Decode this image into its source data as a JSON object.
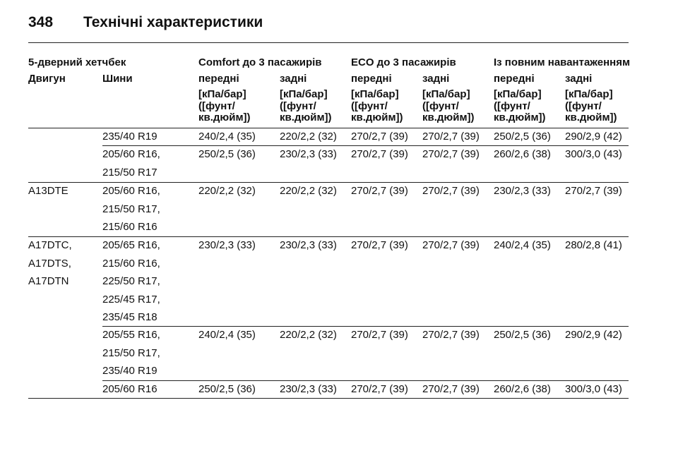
{
  "header": {
    "page_number": "348",
    "title": "Технічні характеристики"
  },
  "table": {
    "group_headers": [
      "5-дверний хетчбек",
      "Comfort до 3 пасажирів",
      "ECO до 3 пасажирів",
      "Із повним навантаженням"
    ],
    "column_headers": [
      "Двигун",
      "Шини",
      "передні",
      "задні",
      "передні",
      "задні",
      "передні",
      "задні"
    ],
    "unit_lines": [
      "[кПа/бар]",
      "([фунт/",
      "кв.дюйм])"
    ],
    "rows": [
      {
        "engine": [],
        "tyres": [
          "235/40 R19"
        ],
        "values": [
          "240/2,4 (35)",
          "220/2,2 (32)",
          "270/2,7 (39)",
          "270/2,7 (39)",
          "250/2,5 (36)",
          "290/2,9 (42)"
        ]
      },
      {
        "engine": [],
        "tyres": [
          "205/60 R16,",
          "215/50 R17"
        ],
        "values": [
          "250/2,5 (36)",
          "230/2,3 (33)",
          "270/2,7 (39)",
          "270/2,7 (39)",
          "260/2,6 (38)",
          "300/3,0 (43)"
        ]
      },
      {
        "engine": [
          "A13DTE"
        ],
        "tyres": [
          "205/60 R16,",
          "215/50 R17,",
          "215/60 R16"
        ],
        "values": [
          "220/2,2 (32)",
          "220/2,2 (32)",
          "270/2,7 (39)",
          "270/2,7 (39)",
          "230/2,3 (33)",
          "270/2,7 (39)"
        ]
      },
      {
        "engine": [
          "A17DTC,",
          "A17DTS,",
          "A17DTN"
        ],
        "tyres": [
          "205/65 R16,",
          "215/60 R16,",
          "225/50 R17,",
          "225/45 R17,",
          "235/45 R18"
        ],
        "values": [
          "230/2,3 (33)",
          "230/2,3 (33)",
          "270/2,7 (39)",
          "270/2,7 (39)",
          "240/2,4 (35)",
          "280/2,8 (41)"
        ]
      },
      {
        "engine": [],
        "tyres": [
          "205/55 R16,",
          "215/50 R17,",
          "235/40 R19"
        ],
        "values": [
          "240/2,4 (35)",
          "220/2,2 (32)",
          "270/2,7 (39)",
          "270/2,7 (39)",
          "250/2,5 (36)",
          "290/2,9 (42)"
        ]
      },
      {
        "engine": [],
        "tyres": [
          "205/60 R16"
        ],
        "values": [
          "250/2,5 (36)",
          "230/2,3 (33)",
          "270/2,7 (39)",
          "270/2,7 (39)",
          "260/2,6 (38)",
          "300/3,0 (43)"
        ]
      }
    ]
  }
}
